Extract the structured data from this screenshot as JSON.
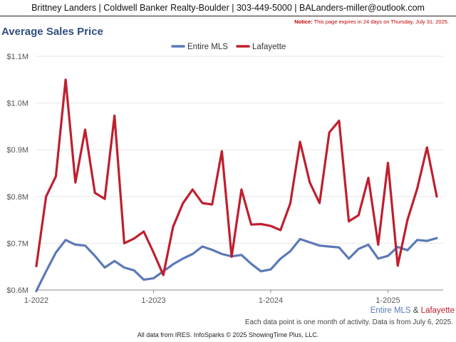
{
  "header": {
    "text": "Brittney Landers | Coldwell Banker Realty-Boulder | 303-449-5000 | BALanders-miller@outlook.com"
  },
  "notice": {
    "label": "Notice:",
    "text": "This page expires in 24 days on Thursday, July 31, 2025."
  },
  "colors": {
    "entire_mls": "#5b79b8",
    "lafayette": "#bf1f2e",
    "grid": "#e6e6e6",
    "title": "#2f4f7f"
  },
  "bottom_legend": {
    "entire": "Entire MLS",
    "sep": " & ",
    "lafayette": "Lafayette"
  },
  "footnote": "Each data point is one month of activity. Data is from July 6, 2025.",
  "footer": "All data from IRES. InfoSparks © 2025 ShowingTime Plus, LLC.",
  "chart_data": {
    "type": "line",
    "title": "Average Sales Price",
    "x": [
      "2022-01",
      "2022-02",
      "2022-03",
      "2022-04",
      "2022-05",
      "2022-06",
      "2022-07",
      "2022-08",
      "2022-09",
      "2022-10",
      "2022-11",
      "2022-12",
      "2023-01",
      "2023-02",
      "2023-03",
      "2023-04",
      "2023-05",
      "2023-06",
      "2023-07",
      "2023-08",
      "2023-09",
      "2023-10",
      "2023-11",
      "2023-12",
      "2024-01",
      "2024-02",
      "2024-03",
      "2024-04",
      "2024-05",
      "2024-06",
      "2024-07",
      "2024-08",
      "2024-09",
      "2024-10",
      "2024-11",
      "2024-12",
      "2025-01",
      "2025-02",
      "2025-03",
      "2025-04",
      "2025-05",
      "2025-06"
    ],
    "x_ticks": [
      "1-2022",
      "1-2023",
      "1-2024",
      "1-2025"
    ],
    "y_ticks": [
      "$0.6M",
      "$0.7M",
      "$0.8M",
      "$0.9M",
      "$1.0M",
      "$1.1M"
    ],
    "ylim": [
      600000,
      1100000
    ],
    "grid": true,
    "legend_position": "top-center",
    "series": [
      {
        "name": "Entire MLS",
        "values": [
          598000,
          640000,
          680000,
          707000,
          697000,
          695000,
          673000,
          648000,
          662000,
          648000,
          642000,
          622000,
          625000,
          640000,
          655000,
          667000,
          677000,
          693000,
          686000,
          677000,
          672000,
          675000,
          656000,
          640000,
          644000,
          667000,
          683000,
          709000,
          702000,
          695000,
          693000,
          691000,
          667000,
          688000,
          697000,
          667000,
          673000,
          692000,
          685000,
          707000,
          705000,
          711000
        ]
      },
      {
        "name": "Lafayette",
        "values": [
          651000,
          800000,
          843000,
          1050000,
          830000,
          943000,
          808000,
          795000,
          973000,
          700000,
          710000,
          725000,
          680000,
          632000,
          735000,
          785000,
          815000,
          786000,
          783000,
          897000,
          671000,
          815000,
          740000,
          741000,
          737000,
          728000,
          785000,
          917000,
          830000,
          786000,
          937000,
          962000,
          747000,
          760000,
          840000,
          697000,
          872000,
          652000,
          750000,
          817000,
          905000,
          800000
        ]
      }
    ]
  }
}
